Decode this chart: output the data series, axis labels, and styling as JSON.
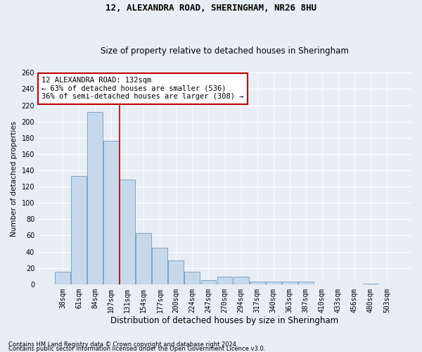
{
  "title1": "12, ALEXANDRA ROAD, SHERINGHAM, NR26 8HU",
  "title2": "Size of property relative to detached houses in Sheringham",
  "xlabel": "Distribution of detached houses by size in Sheringham",
  "ylabel": "Number of detached properties",
  "bar_labels": [
    "38sqm",
    "61sqm",
    "84sqm",
    "107sqm",
    "131sqm",
    "154sqm",
    "177sqm",
    "200sqm",
    "224sqm",
    "247sqm",
    "270sqm",
    "294sqm",
    "317sqm",
    "340sqm",
    "363sqm",
    "387sqm",
    "410sqm",
    "433sqm",
    "456sqm",
    "480sqm",
    "503sqm"
  ],
  "bar_heights": [
    15,
    133,
    212,
    176,
    129,
    63,
    45,
    29,
    15,
    5,
    9,
    9,
    3,
    3,
    3,
    3,
    0,
    0,
    0,
    1,
    0
  ],
  "bar_color": "#c8d8eb",
  "bar_edge_color": "#6a9cbf",
  "background_color": "#e8eef5",
  "grid_color": "#ffffff",
  "vline_x": 3.5,
  "vline_color": "#bb0000",
  "annotation_text": "12 ALEXANDRA ROAD: 132sqm\n← 63% of detached houses are smaller (536)\n36% of semi-detached houses are larger (308) →",
  "annotation_box_facecolor": "#ffffff",
  "annotation_box_edgecolor": "#bb0000",
  "ylim": [
    0,
    260
  ],
  "yticks": [
    0,
    20,
    40,
    60,
    80,
    100,
    120,
    140,
    160,
    180,
    200,
    220,
    240,
    260
  ],
  "footnote1": "Contains HM Land Registry data © Crown copyright and database right 2024.",
  "footnote2": "Contains public sector information licensed under the Open Government Licence v3.0.",
  "title1_fontsize": 9,
  "title2_fontsize": 8.5,
  "ylabel_fontsize": 7.5,
  "xlabel_fontsize": 8.5,
  "tick_fontsize": 7,
  "annotation_fontsize": 7.5,
  "footnote_fontsize": 6
}
